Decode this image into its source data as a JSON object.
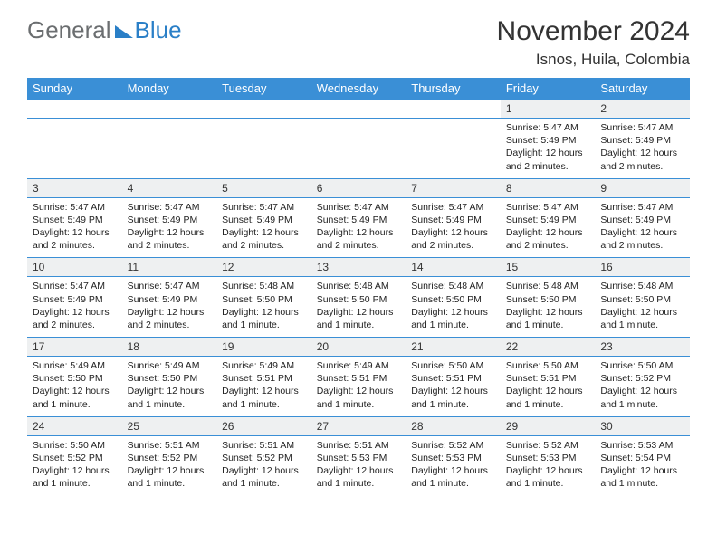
{
  "logo": {
    "part1": "General",
    "part2": "Blue"
  },
  "title": "November 2024",
  "location": "Isnos, Huila, Colombia",
  "header_bg": "#3a8fd6",
  "daynum_bg": "#eef0f1",
  "border_color": "#3a8fd6",
  "weekdays": [
    "Sunday",
    "Monday",
    "Tuesday",
    "Wednesday",
    "Thursday",
    "Friday",
    "Saturday"
  ],
  "weeks": [
    [
      null,
      null,
      null,
      null,
      null,
      {
        "n": "1",
        "sr": "5:47 AM",
        "ss": "5:49 PM",
        "dl": "12 hours and 2 minutes."
      },
      {
        "n": "2",
        "sr": "5:47 AM",
        "ss": "5:49 PM",
        "dl": "12 hours and 2 minutes."
      }
    ],
    [
      {
        "n": "3",
        "sr": "5:47 AM",
        "ss": "5:49 PM",
        "dl": "12 hours and 2 minutes."
      },
      {
        "n": "4",
        "sr": "5:47 AM",
        "ss": "5:49 PM",
        "dl": "12 hours and 2 minutes."
      },
      {
        "n": "5",
        "sr": "5:47 AM",
        "ss": "5:49 PM",
        "dl": "12 hours and 2 minutes."
      },
      {
        "n": "6",
        "sr": "5:47 AM",
        "ss": "5:49 PM",
        "dl": "12 hours and 2 minutes."
      },
      {
        "n": "7",
        "sr": "5:47 AM",
        "ss": "5:49 PM",
        "dl": "12 hours and 2 minutes."
      },
      {
        "n": "8",
        "sr": "5:47 AM",
        "ss": "5:49 PM",
        "dl": "12 hours and 2 minutes."
      },
      {
        "n": "9",
        "sr": "5:47 AM",
        "ss": "5:49 PM",
        "dl": "12 hours and 2 minutes."
      }
    ],
    [
      {
        "n": "10",
        "sr": "5:47 AM",
        "ss": "5:49 PM",
        "dl": "12 hours and 2 minutes."
      },
      {
        "n": "11",
        "sr": "5:47 AM",
        "ss": "5:49 PM",
        "dl": "12 hours and 2 minutes."
      },
      {
        "n": "12",
        "sr": "5:48 AM",
        "ss": "5:50 PM",
        "dl": "12 hours and 1 minute."
      },
      {
        "n": "13",
        "sr": "5:48 AM",
        "ss": "5:50 PM",
        "dl": "12 hours and 1 minute."
      },
      {
        "n": "14",
        "sr": "5:48 AM",
        "ss": "5:50 PM",
        "dl": "12 hours and 1 minute."
      },
      {
        "n": "15",
        "sr": "5:48 AM",
        "ss": "5:50 PM",
        "dl": "12 hours and 1 minute."
      },
      {
        "n": "16",
        "sr": "5:48 AM",
        "ss": "5:50 PM",
        "dl": "12 hours and 1 minute."
      }
    ],
    [
      {
        "n": "17",
        "sr": "5:49 AM",
        "ss": "5:50 PM",
        "dl": "12 hours and 1 minute."
      },
      {
        "n": "18",
        "sr": "5:49 AM",
        "ss": "5:50 PM",
        "dl": "12 hours and 1 minute."
      },
      {
        "n": "19",
        "sr": "5:49 AM",
        "ss": "5:51 PM",
        "dl": "12 hours and 1 minute."
      },
      {
        "n": "20",
        "sr": "5:49 AM",
        "ss": "5:51 PM",
        "dl": "12 hours and 1 minute."
      },
      {
        "n": "21",
        "sr": "5:50 AM",
        "ss": "5:51 PM",
        "dl": "12 hours and 1 minute."
      },
      {
        "n": "22",
        "sr": "5:50 AM",
        "ss": "5:51 PM",
        "dl": "12 hours and 1 minute."
      },
      {
        "n": "23",
        "sr": "5:50 AM",
        "ss": "5:52 PM",
        "dl": "12 hours and 1 minute."
      }
    ],
    [
      {
        "n": "24",
        "sr": "5:50 AM",
        "ss": "5:52 PM",
        "dl": "12 hours and 1 minute."
      },
      {
        "n": "25",
        "sr": "5:51 AM",
        "ss": "5:52 PM",
        "dl": "12 hours and 1 minute."
      },
      {
        "n": "26",
        "sr": "5:51 AM",
        "ss": "5:52 PM",
        "dl": "12 hours and 1 minute."
      },
      {
        "n": "27",
        "sr": "5:51 AM",
        "ss": "5:53 PM",
        "dl": "12 hours and 1 minute."
      },
      {
        "n": "28",
        "sr": "5:52 AM",
        "ss": "5:53 PM",
        "dl": "12 hours and 1 minute."
      },
      {
        "n": "29",
        "sr": "5:52 AM",
        "ss": "5:53 PM",
        "dl": "12 hours and 1 minute."
      },
      {
        "n": "30",
        "sr": "5:53 AM",
        "ss": "5:54 PM",
        "dl": "12 hours and 1 minute."
      }
    ]
  ],
  "labels": {
    "sunrise": "Sunrise: ",
    "sunset": "Sunset: ",
    "daylight": "Daylight: "
  }
}
